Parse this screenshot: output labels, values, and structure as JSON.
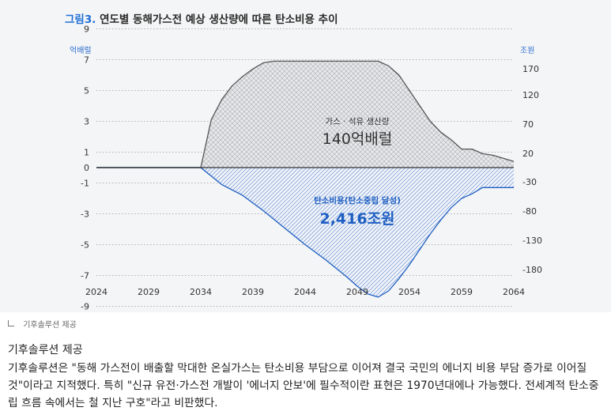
{
  "figure": {
    "title_num": "그림3.",
    "title_rest": "연도별 동해가스전 예상 생산량에 따른 탄소비용 추이",
    "left_unit": "억배럴",
    "right_unit": "조원"
  },
  "chart_data": {
    "type": "area",
    "x_ticks": [
      "2024",
      "2029",
      "2034",
      "2039",
      "2044",
      "2049",
      "2054",
      "2059",
      "2064"
    ],
    "x_range": [
      2024,
      2064
    ],
    "y_left_ticks": [
      "9",
      "7",
      "5",
      "3",
      "1",
      "0",
      "-1",
      "-3",
      "-5",
      "-7",
      "-9"
    ],
    "y_left_range": [
      -9.3,
      9.5
    ],
    "y_right_ticks": [
      "170",
      "120",
      "70",
      "20",
      "-30",
      "-80",
      "-130",
      "-180"
    ],
    "grid": "dotted horizontal",
    "series": [
      {
        "name": "가스 · 석유 생산량",
        "total": "140억배럴",
        "color": "#555555",
        "fill": "crosshatch gray",
        "x": [
          2024,
          2034,
          2035,
          2036,
          2037,
          2038,
          2039,
          2040,
          2041,
          2042,
          2044,
          2046,
          2048,
          2050,
          2051,
          2052,
          2053,
          2054,
          2055,
          2056,
          2057,
          2058,
          2059,
          2060,
          2061,
          2062,
          2063,
          2064
        ],
        "y": [
          0,
          0,
          3.1,
          4.4,
          5.3,
          5.9,
          6.4,
          6.8,
          6.9,
          6.9,
          6.9,
          6.9,
          6.9,
          6.9,
          6.9,
          6.6,
          6.0,
          5.0,
          4.0,
          3.0,
          2.3,
          1.8,
          1.2,
          1.2,
          0.9,
          0.8,
          0.6,
          0.4
        ]
      },
      {
        "name": "탄소비용(탄소중립 달성)",
        "total": "2,416조원",
        "color": "#1f5fc2",
        "fill": "diagonal hatch blue",
        "x": [
          2024,
          2034,
          2036,
          2038,
          2040,
          2042,
          2044,
          2046,
          2048,
          2049,
          2050,
          2051,
          2052,
          2053,
          2054,
          2055,
          2056,
          2057,
          2058,
          2059,
          2060,
          2061,
          2062,
          2063,
          2064
        ],
        "y": [
          0,
          0,
          -1.1,
          -1.8,
          -2.8,
          -3.9,
          -5.0,
          -6.0,
          -7.1,
          -7.7,
          -8.2,
          -8.4,
          -8.0,
          -7.2,
          -6.3,
          -5.3,
          -4.3,
          -3.4,
          -2.6,
          -2.0,
          -1.7,
          -1.3,
          -1.3,
          -1.3,
          -1.3
        ]
      }
    ]
  },
  "credit": "기후솔루션 제공",
  "caption": "기후솔루션 제공",
  "body_text": "기후솔루션은 \"동해 가스전이 배출할 막대한 온실가스는 탄소비용 부담으로 이어져 결국 국민의 에너지 비용 부담 증가로 이어질 것\"이라고 지적했다. 특히 \"신규 유전·가스전 개발이 '에너지 안보'에 필수적이란 표현은 1970년대에나 가능했다. 전세계적 탄소중립 흐름 속에서는 철 지난 구호\"라고 비판했다."
}
